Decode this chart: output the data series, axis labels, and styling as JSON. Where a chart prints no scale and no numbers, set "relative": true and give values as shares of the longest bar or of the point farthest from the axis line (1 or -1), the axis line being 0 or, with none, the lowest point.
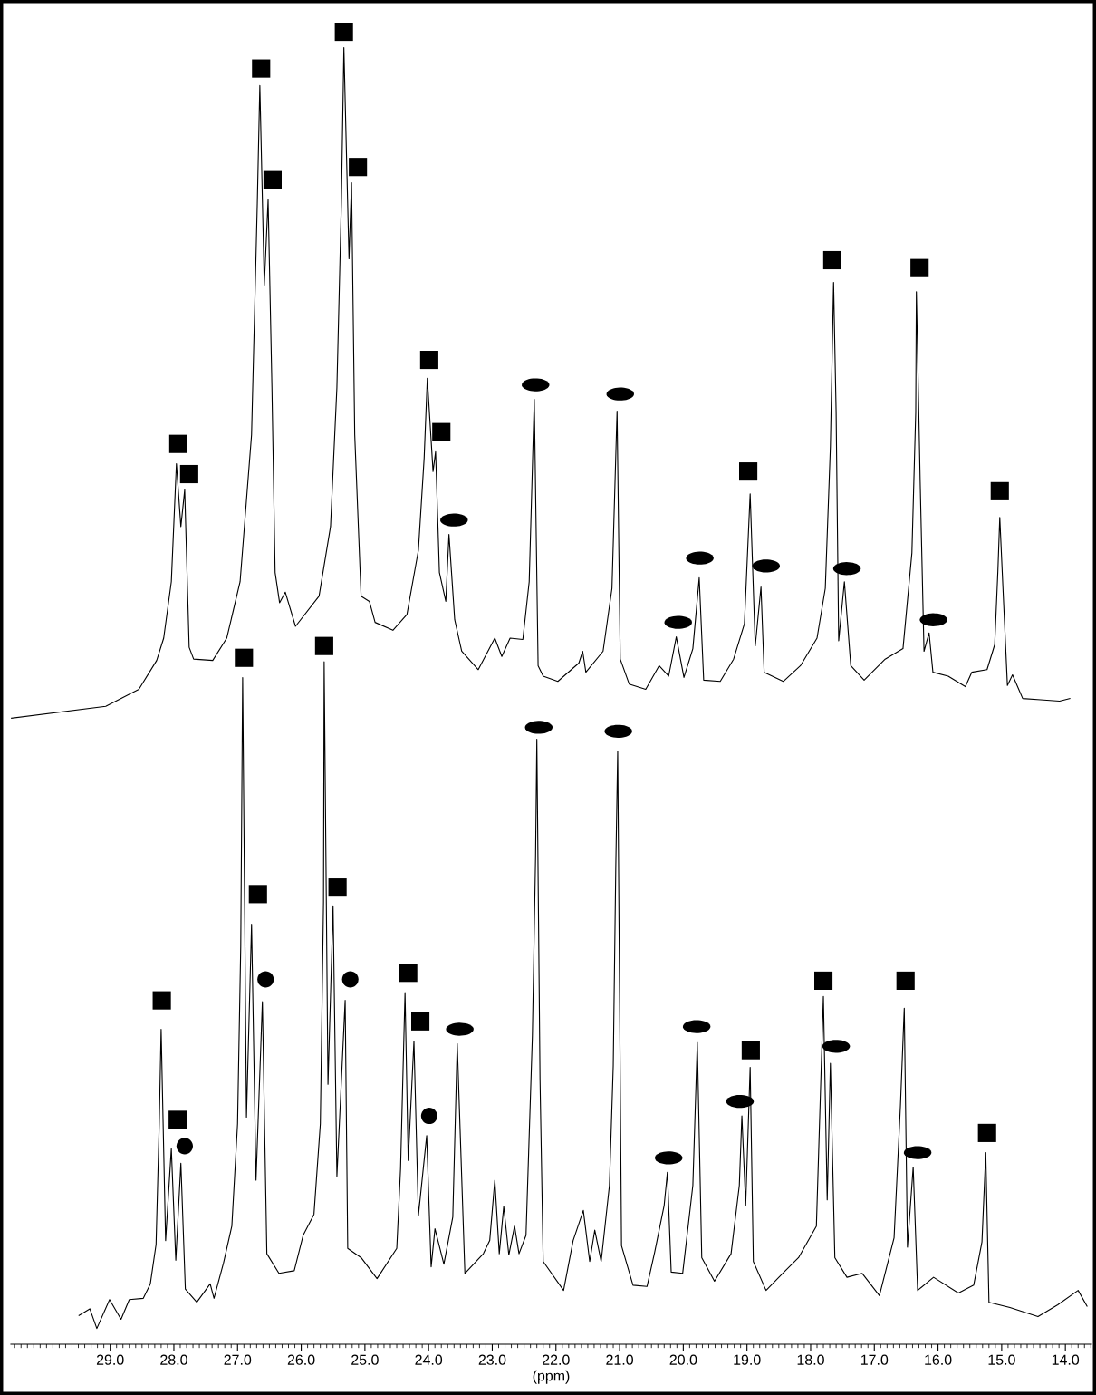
{
  "chart_data": {
    "type": "line",
    "relative": true,
    "xlabel": "(ppm)",
    "xlim": [
      30.56,
      13.59
    ],
    "xticks": [
      {
        "value": 29,
        "label": "29.0"
      },
      {
        "value": 28,
        "label": "28.0"
      },
      {
        "value": 27,
        "label": "27.0"
      },
      {
        "value": 26,
        "label": "26.0"
      },
      {
        "value": 25,
        "label": "25.0"
      },
      {
        "value": 24,
        "label": "24.0"
      },
      {
        "value": 23,
        "label": "23.0"
      },
      {
        "value": 22,
        "label": "22.0"
      },
      {
        "value": 21,
        "label": "21.0"
      },
      {
        "value": 20,
        "label": "20.0"
      },
      {
        "value": 19,
        "label": "19.0"
      },
      {
        "value": 18,
        "label": "18.0"
      },
      {
        "value": 17,
        "label": "17.0"
      },
      {
        "value": 16,
        "label": "16.0"
      },
      {
        "value": 15,
        "label": "15.0"
      },
      {
        "value": 14,
        "label": "14.0"
      }
    ],
    "series": [
      {
        "color": "#000000",
        "marker": "none",
        "x": [
          30.55,
          29.07,
          28.55,
          28.27,
          28.16,
          28.04,
          27.96,
          27.89,
          27.83,
          27.76,
          27.69,
          27.39,
          27.17,
          26.96,
          26.78,
          26.69,
          26.65,
          26.58,
          26.52,
          26.46,
          26.41,
          26.34,
          26.25,
          26.09,
          25.72,
          25.54,
          25.44,
          25.37,
          25.33,
          25.25,
          25.21,
          25.16,
          25.06,
          24.93,
          24.84,
          24.56,
          24.34,
          24.16,
          24.07,
          24.02,
          23.93,
          23.89,
          23.83,
          23.73,
          23.68,
          23.59,
          23.48,
          23.22,
          22.96,
          22.85,
          22.72,
          22.52,
          22.42,
          22.34,
          22.28,
          22.2,
          21.97,
          21.64,
          21.58,
          21.53,
          21.26,
          21.12,
          21.04,
          20.99,
          20.85,
          20.59,
          20.38,
          20.23,
          20.11,
          19.99,
          19.85,
          19.75,
          19.68,
          19.42,
          19.21,
          19.04,
          18.95,
          18.87,
          18.78,
          18.73,
          18.43,
          18.16,
          17.9,
          17.77,
          17.69,
          17.64,
          17.6,
          17.56,
          17.47,
          17.37,
          17.16,
          16.83,
          16.55,
          16.41,
          16.35,
          16.34,
          16.28,
          16.22,
          16.14,
          16.08,
          15.84,
          15.57,
          15.47,
          15.23,
          15.11,
          15.06,
          15.03,
          14.98,
          14.91,
          14.83,
          14.67,
          14.39,
          14.09,
          13.93
        ],
        "values": [
          0.477,
          0.486,
          0.499,
          0.521,
          0.538,
          0.581,
          0.671,
          0.623,
          0.651,
          0.531,
          0.522,
          0.521,
          0.538,
          0.581,
          0.693,
          0.869,
          0.959,
          0.807,
          0.872,
          0.729,
          0.588,
          0.565,
          0.573,
          0.547,
          0.57,
          0.623,
          0.729,
          0.869,
          0.988,
          0.827,
          0.885,
          0.693,
          0.57,
          0.566,
          0.55,
          0.544,
          0.556,
          0.605,
          0.675,
          0.736,
          0.665,
          0.68,
          0.588,
          0.566,
          0.617,
          0.552,
          0.528,
          0.514,
          0.538,
          0.524,
          0.538,
          0.537,
          0.581,
          0.72,
          0.517,
          0.509,
          0.505,
          0.519,
          0.528,
          0.512,
          0.528,
          0.576,
          0.711,
          0.522,
          0.503,
          0.499,
          0.517,
          0.509,
          0.539,
          0.508,
          0.53,
          0.584,
          0.506,
          0.505,
          0.522,
          0.549,
          0.648,
          0.532,
          0.577,
          0.512,
          0.505,
          0.517,
          0.538,
          0.576,
          0.684,
          0.809,
          0.71,
          0.536,
          0.581,
          0.517,
          0.506,
          0.522,
          0.53,
          0.603,
          0.71,
          0.802,
          0.657,
          0.528,
          0.542,
          0.512,
          0.509,
          0.501,
          0.512,
          0.514,
          0.533,
          0.589,
          0.63,
          0.576,
          0.502,
          0.51,
          0.492,
          0.491,
          0.49,
          0.492
        ]
      },
      {
        "color": "#000000",
        "marker": "none",
        "x": [
          29.49,
          29.32,
          29.21,
          29.01,
          28.83,
          28.7,
          28.48,
          28.37,
          28.28,
          28.23,
          28.2,
          28.13,
          28.04,
          27.97,
          27.89,
          27.82,
          27.64,
          27.43,
          27.37,
          27.22,
          27.09,
          27.0,
          26.95,
          26.92,
          26.86,
          26.78,
          26.71,
          26.61,
          26.54,
          26.35,
          26.11,
          25.97,
          25.8,
          25.7,
          25.65,
          25.64,
          25.58,
          25.5,
          25.44,
          25.31,
          25.27,
          25.06,
          24.81,
          24.5,
          24.44,
          24.37,
          24.32,
          24.23,
          24.16,
          24.03,
          23.96,
          23.9,
          23.76,
          23.62,
          23.55,
          23.43,
          23.14,
          23.04,
          22.96,
          22.89,
          22.82,
          22.74,
          22.65,
          22.58,
          22.47,
          22.37,
          22.32,
          22.3,
          22.25,
          22.2,
          21.88,
          21.73,
          21.57,
          21.47,
          21.39,
          21.29,
          21.16,
          21.1,
          21.06,
          21.03,
          20.97,
          20.79,
          20.57,
          20.45,
          20.3,
          20.25,
          20.19,
          20.01,
          19.85,
          19.78,
          19.71,
          19.51,
          19.25,
          19.12,
          19.08,
          19.02,
          18.95,
          18.9,
          18.7,
          18.44,
          18.19,
          17.91,
          17.8,
          17.74,
          17.69,
          17.62,
          17.43,
          17.19,
          16.92,
          16.69,
          16.59,
          16.53,
          16.48,
          16.39,
          16.32,
          16.07,
          15.68,
          15.44,
          15.31,
          15.25,
          15.2,
          14.87,
          14.43,
          14.12,
          13.8,
          13.66
        ],
        "values": [
          0.022,
          0.027,
          0.012,
          0.034,
          0.019,
          0.034,
          0.035,
          0.046,
          0.076,
          0.168,
          0.24,
          0.079,
          0.149,
          0.064,
          0.138,
          0.042,
          0.032,
          0.046,
          0.035,
          0.062,
          0.09,
          0.168,
          0.303,
          0.508,
          0.173,
          0.32,
          0.125,
          0.261,
          0.069,
          0.054,
          0.056,
          0.083,
          0.099,
          0.168,
          0.337,
          0.52,
          0.198,
          0.334,
          0.128,
          0.262,
          0.073,
          0.066,
          0.05,
          0.073,
          0.134,
          0.268,
          0.14,
          0.231,
          0.098,
          0.159,
          0.059,
          0.088,
          0.061,
          0.097,
          0.229,
          0.054,
          0.069,
          0.079,
          0.125,
          0.069,
          0.105,
          0.068,
          0.09,
          0.069,
          0.083,
          0.235,
          0.371,
          0.461,
          0.202,
          0.063,
          0.041,
          0.079,
          0.102,
          0.063,
          0.087,
          0.063,
          0.121,
          0.212,
          0.364,
          0.452,
          0.075,
          0.045,
          0.044,
          0.07,
          0.106,
          0.131,
          0.055,
          0.054,
          0.121,
          0.23,
          0.066,
          0.048,
          0.069,
          0.121,
          0.174,
          0.106,
          0.211,
          0.063,
          0.041,
          0.054,
          0.066,
          0.09,
          0.265,
          0.11,
          0.214,
          0.066,
          0.051,
          0.054,
          0.037,
          0.081,
          0.182,
          0.256,
          0.074,
          0.135,
          0.041,
          0.051,
          0.039,
          0.045,
          0.078,
          0.146,
          0.032,
          0.028,
          0.021,
          0.03,
          0.041,
          0.029
        ]
      },
      {
        "type": "scatter",
        "color": "#000000",
        "marker": "square",
        "x": [
          27.93,
          27.76,
          26.63,
          26.45,
          25.33,
          25.11,
          23.99,
          23.8,
          18.98,
          17.66,
          16.29,
          15.03
        ],
        "values": [
          0.686,
          0.663,
          0.972,
          0.887,
          1.0,
          0.897,
          0.75,
          0.695,
          0.665,
          0.826,
          0.82,
          0.65
        ]
      },
      {
        "type": "scatter",
        "color": "#000000",
        "x": [
          23.6,
          22.32,
          20.99,
          20.08,
          19.74,
          18.7,
          17.43,
          16.07
        ],
        "values": [
          0.628,
          0.731,
          0.724,
          0.55,
          0.599,
          0.593,
          0.591,
          0.552
        ]
      },
      {
        "type": "scatter",
        "color": "#000000",
        "marker": "square",
        "x": [
          28.19,
          27.94,
          26.9,
          26.68,
          25.64,
          25.43,
          24.32,
          24.13,
          18.94,
          17.8,
          16.51,
          15.23
        ],
        "values": [
          0.262,
          0.171,
          0.523,
          0.343,
          0.532,
          0.348,
          0.283,
          0.246,
          0.224,
          0.277,
          0.277,
          0.161
        ]
      },
      {
        "type": "scatter",
        "color": "#000000",
        "marker": "circle",
        "x": [
          27.83,
          26.56,
          25.23,
          23.99
        ],
        "values": [
          0.151,
          0.278,
          0.278,
          0.174
        ]
      },
      {
        "type": "scatter",
        "color": "#000000",
        "x": [
          23.51,
          22.27,
          21.02,
          20.23,
          19.79,
          19.11,
          17.6,
          16.32
        ],
        "values": [
          0.24,
          0.47,
          0.467,
          0.142,
          0.242,
          0.185,
          0.227,
          0.146
        ]
      }
    ]
  }
}
